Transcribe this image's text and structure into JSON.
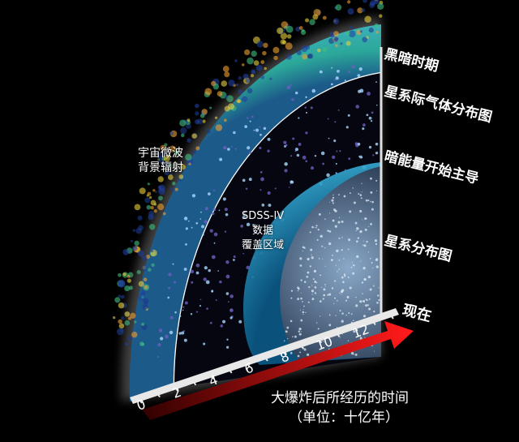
{
  "labels": {
    "dark_ages": "黑暗时期",
    "intergalactic_gas": "星系际气体分布图",
    "dark_energy": "暗能量开始主导",
    "galaxy_map": "星系分布图",
    "now": "现在",
    "cmb_line1": "宇宙微波",
    "cmb_line2": "背景辐射",
    "sdss_line1": "SDSS-IV",
    "sdss_line2": "数据",
    "sdss_line3": "覆盖区域"
  },
  "axis": {
    "title": "大爆炸后所经历的时间",
    "unit": "（单位：十亿年）",
    "ticks": [
      "0",
      "2",
      "4",
      "6",
      "8",
      "10",
      "12"
    ]
  },
  "colors": {
    "arrow": "#e01010",
    "cmb": "#2aa6a0",
    "sdss": "#38b8e0",
    "axis": "#e8e8e8"
  }
}
